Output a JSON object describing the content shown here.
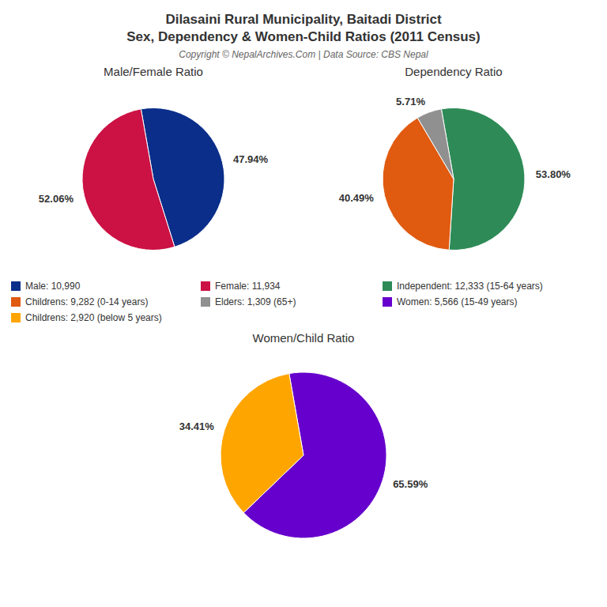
{
  "title": [
    "Dilasaini Rural Municipality, Baitadi District",
    "Sex, Dependency & Women-Child Ratios (2011 Census)"
  ],
  "subtitle": "Copyright © NepalArchives.Com | Data Source: CBS Nepal",
  "chart_data": [
    {
      "type": "pie",
      "title": "Male/Female Ratio",
      "categories": [
        "Male: 10,990",
        "Female: 11,934"
      ],
      "values": [
        47.94,
        52.06
      ],
      "value_labels": [
        "47.94%",
        "52.06%"
      ],
      "colors": [
        "#0a2e8a",
        "#cc1144"
      ],
      "data_labels": true
    },
    {
      "type": "pie",
      "title": "Dependency Ratio",
      "categories": [
        "Independent: 12,333 (15-64 years)",
        "Childrens: 9,282 (0-14 years)",
        "Elders: 1,309 (65+)"
      ],
      "values": [
        53.8,
        40.49,
        5.71
      ],
      "value_labels": [
        "53.80%",
        "40.49%",
        "5.71%"
      ],
      "colors": [
        "#2e8b57",
        "#e05a10",
        "#909090"
      ],
      "data_labels": true
    },
    {
      "type": "pie",
      "title": "Women/Child Ratio",
      "categories": [
        "Women: 5,566 (15-49 years)",
        "Childrens: 2,920 (below 5 years)"
      ],
      "values": [
        65.59,
        34.41
      ],
      "value_labels": [
        "65.59%",
        "34.41%"
      ],
      "colors": [
        "#6600cc",
        "#ffa500"
      ],
      "data_labels": true
    }
  ]
}
